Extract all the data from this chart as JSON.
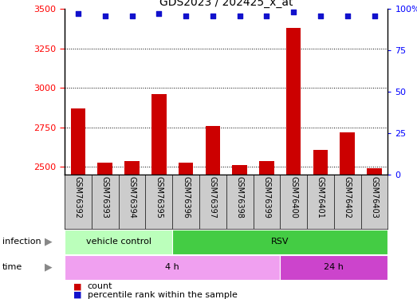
{
  "title": "GDS2023 / 202425_x_at",
  "samples": [
    "GSM76392",
    "GSM76393",
    "GSM76394",
    "GSM76395",
    "GSM76396",
    "GSM76397",
    "GSM76398",
    "GSM76399",
    "GSM76400",
    "GSM76401",
    "GSM76402",
    "GSM76403"
  ],
  "counts": [
    2870,
    2530,
    2540,
    2960,
    2530,
    2760,
    2510,
    2540,
    3380,
    2610,
    2720,
    2490
  ],
  "percentile_ranks": [
    97,
    96,
    96,
    97,
    96,
    96,
    96,
    96,
    98,
    96,
    96,
    96
  ],
  "ylim_left": [
    2450,
    3500
  ],
  "ylim_right": [
    0,
    100
  ],
  "yticks_left": [
    2500,
    2750,
    3000,
    3250,
    3500
  ],
  "yticks_right": [
    0,
    25,
    50,
    75,
    100
  ],
  "bar_color": "#cc0000",
  "dot_color": "#1111cc",
  "infection_segments": [
    {
      "label": "vehicle control",
      "start": 0,
      "end": 4,
      "color": "#bbffbb"
    },
    {
      "label": "RSV",
      "start": 4,
      "end": 12,
      "color": "#44cc44"
    }
  ],
  "time_segments": [
    {
      "label": "4 h",
      "start": 0,
      "end": 8,
      "color": "#f0a0f0"
    },
    {
      "label": "24 h",
      "start": 8,
      "end": 12,
      "color": "#cc44cc"
    }
  ],
  "bg_color": "#cccccc",
  "legend_count_label": "count",
  "legend_percentile_label": "percentile rank within the sample",
  "arrow_color": "#888888"
}
